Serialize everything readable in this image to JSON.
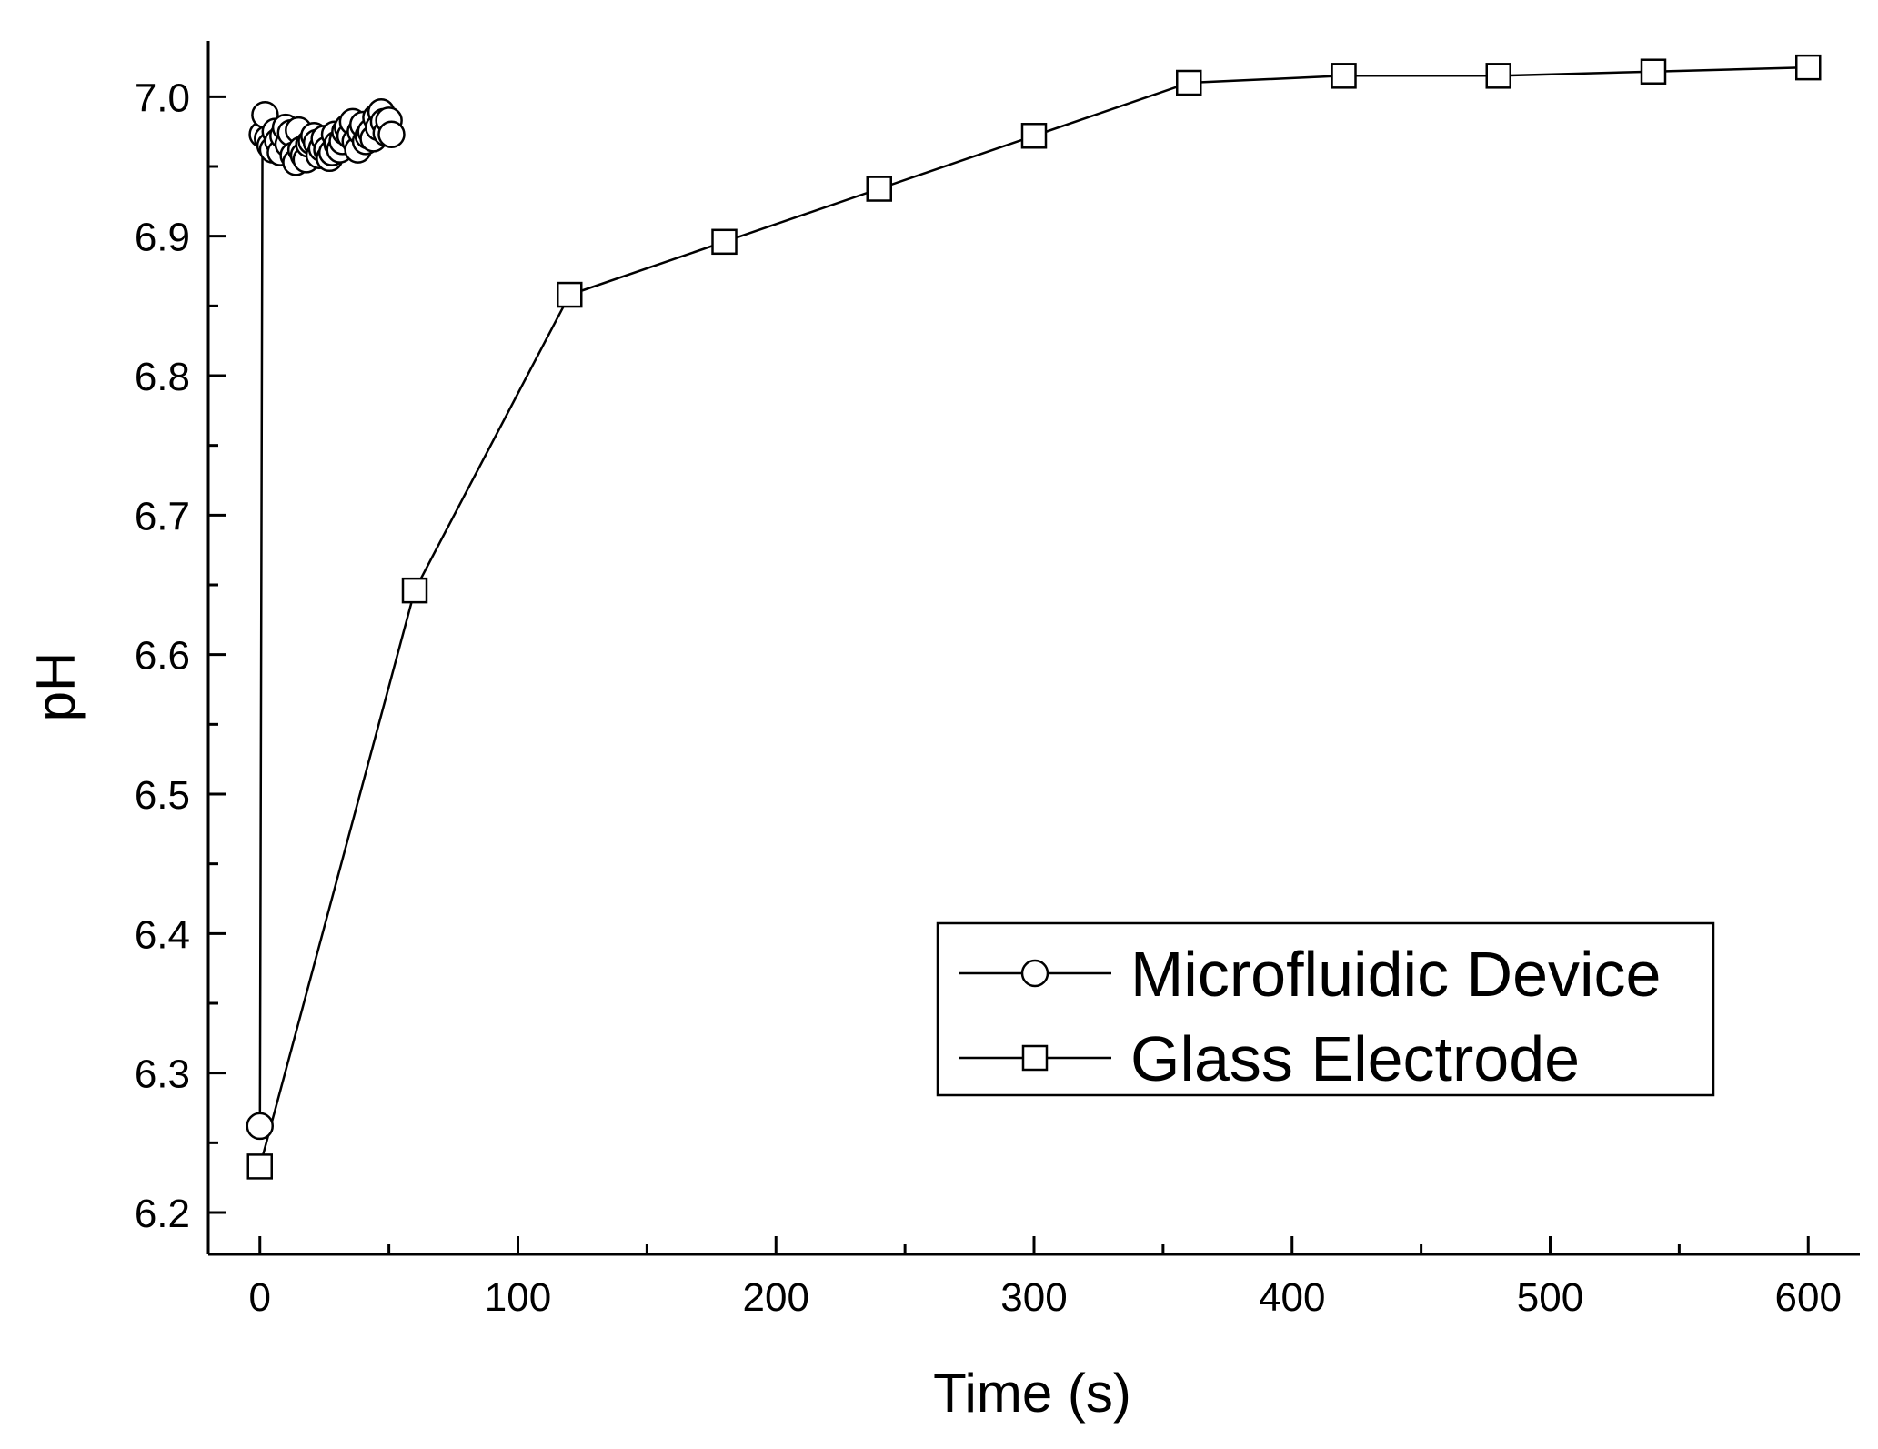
{
  "chart_data": {
    "type": "line",
    "title": "",
    "xlabel": "Time (s)",
    "ylabel": "pH",
    "xlim": [
      -20,
      620
    ],
    "ylim": [
      6.17,
      7.04
    ],
    "x_ticks": [
      0,
      100,
      200,
      300,
      400,
      500,
      600
    ],
    "x_tick_labels": [
      "0",
      "100",
      "200",
      "300",
      "400",
      "500",
      "600"
    ],
    "x_minor_ticks": [
      50,
      150,
      250,
      350,
      450,
      550
    ],
    "y_ticks": [
      6.2,
      6.3,
      6.4,
      6.5,
      6.6,
      6.7,
      6.8,
      6.9,
      7.0
    ],
    "y_tick_labels": [
      "6.2",
      "6.3",
      "6.4",
      "6.5",
      "6.6",
      "6.7",
      "6.8",
      "6.9",
      "7.0"
    ],
    "y_minor_ticks": [
      6.25,
      6.35,
      6.45,
      6.55,
      6.65,
      6.75,
      6.85,
      6.95
    ],
    "grid": false,
    "legend_position": "bottom-right",
    "series": [
      {
        "name": "Microfluidic Device",
        "marker": "circle",
        "x": [
          0,
          1,
          2,
          3,
          4,
          5,
          6,
          7,
          8,
          9,
          10,
          11,
          12,
          13,
          14,
          15,
          16,
          17,
          18,
          19,
          20,
          21,
          22,
          23,
          24,
          25,
          26,
          27,
          28,
          29,
          30,
          31,
          32,
          33,
          34,
          35,
          36,
          37,
          38,
          39,
          40,
          41,
          42,
          43,
          44,
          45,
          46,
          47,
          48,
          49,
          50,
          51
        ],
        "values": [
          6.262,
          6.973,
          6.987,
          6.97,
          6.965,
          6.962,
          6.975,
          6.968,
          6.96,
          6.972,
          6.978,
          6.966,
          6.974,
          6.958,
          6.953,
          6.976,
          6.962,
          6.958,
          6.955,
          6.966,
          6.968,
          6.972,
          6.967,
          6.958,
          6.963,
          6.97,
          6.962,
          6.956,
          6.96,
          6.973,
          6.966,
          6.962,
          6.968,
          6.975,
          6.978,
          6.972,
          6.982,
          6.968,
          6.962,
          6.975,
          6.98,
          6.968,
          6.972,
          6.975,
          6.97,
          6.985,
          6.978,
          6.989,
          6.982,
          6.974,
          6.983,
          6.973
        ]
      },
      {
        "name": "Glass Electrode",
        "marker": "square",
        "x": [
          0,
          60,
          120,
          180,
          240,
          300,
          360,
          420,
          480,
          540,
          600
        ],
        "values": [
          6.233,
          6.646,
          6.858,
          6.896,
          6.934,
          6.972,
          7.01,
          7.015,
          7.015,
          7.018,
          7.021
        ]
      }
    ]
  }
}
